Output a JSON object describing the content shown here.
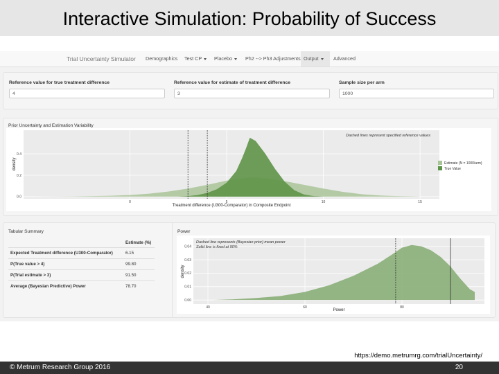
{
  "slide": {
    "title": "Interactive Simulation: Probability of Success",
    "url": "https://demo.metrumrg.com/trialUncertainty/",
    "footer_left": "© Metrum Research Group 2016",
    "page_number": "20"
  },
  "navbar": {
    "brand": "Trial Uncertainty Simulator",
    "items": [
      {
        "label": "Demographics",
        "dropdown": false,
        "active": false
      },
      {
        "label": "Test CP",
        "dropdown": true,
        "active": false
      },
      {
        "label": "Placebo",
        "dropdown": true,
        "active": false
      },
      {
        "label": "Ph2 --> Ph3 Adjustments",
        "dropdown": false,
        "active": false
      },
      {
        "label": "Output",
        "dropdown": true,
        "active": true
      },
      {
        "label": "Advanced",
        "dropdown": false,
        "active": false
      }
    ]
  },
  "inputs": {
    "true_diff": {
      "label": "Reference value for true treatment difference",
      "value": "4"
    },
    "est_diff": {
      "label": "Reference value for estimate of treatment difference",
      "value": "3"
    },
    "sample_size": {
      "label": "Sample size per arm",
      "value": "1000"
    }
  },
  "prior_panel": {
    "title": "Prior Uncertainty and Estimation Variability",
    "annotation": "Dashed lines represent specified reference values",
    "legend": [
      "Estimate (N = 1000/arm)",
      "True Value"
    ]
  },
  "summary": {
    "title": "Tabular Summary",
    "header": "Estimate (%)",
    "rows": [
      {
        "label": "Expected Treatment difference (U300-Comparator)",
        "value": "6.15"
      },
      {
        "label": "P(True value > 4)",
        "value": "99.80"
      },
      {
        "label": "P(Trial estimate > 3)",
        "value": "91.50"
      },
      {
        "label": "Average (Bayesian Predictive) Power",
        "value": "78.70"
      }
    ]
  },
  "power_panel": {
    "title": "Power",
    "annotation_1": "Dashed line represents (Bayesian prior) mean power",
    "annotation_2": "Solid line is fixed at 90%"
  },
  "colors": {
    "estimate_fill": "#a9c499",
    "true_fill": "#5e9447",
    "power_fill": "#8aae78",
    "plot_bg": "#ebebeb"
  },
  "chart_data": [
    {
      "type": "area",
      "xlabel": "Treatment difference (U300-Comparator) in Composite Endpoint",
      "ylabel": "density",
      "xlim": [
        -5.5,
        16
      ],
      "ylim": [
        -0.02,
        0.62
      ],
      "x_ticks": [
        0,
        5,
        10,
        15
      ],
      "y_ticks": [
        0.0,
        0.2,
        0.4
      ],
      "y_tick_labels": [
        "0.0",
        "0.2",
        "0.4"
      ],
      "reference_lines": [
        {
          "x": 3,
          "style": "dashed"
        },
        {
          "x": 4,
          "style": "dashed"
        }
      ],
      "legend_position": "right",
      "series": [
        {
          "name": "Estimate (N = 1000/arm)",
          "x": [
            -5,
            -3,
            -1,
            0,
            1,
            2,
            3,
            4,
            5,
            6,
            6.5,
            7,
            8,
            9,
            10,
            11,
            12,
            13,
            14,
            15
          ],
          "y": [
            0.0,
            0.002,
            0.008,
            0.015,
            0.028,
            0.048,
            0.075,
            0.11,
            0.15,
            0.175,
            0.178,
            0.17,
            0.145,
            0.11,
            0.075,
            0.045,
            0.022,
            0.01,
            0.004,
            0.001
          ]
        },
        {
          "name": "True Value",
          "x": [
            2.5,
            3,
            3.5,
            4,
            4.5,
            5,
            5.5,
            5.8,
            6,
            6.2,
            6.5,
            7,
            7.5,
            8,
            8.5,
            9,
            9.5,
            10
          ],
          "y": [
            0.0,
            0.005,
            0.015,
            0.035,
            0.07,
            0.13,
            0.24,
            0.36,
            0.45,
            0.55,
            0.52,
            0.4,
            0.26,
            0.14,
            0.06,
            0.02,
            0.005,
            0.0
          ]
        }
      ]
    },
    {
      "type": "area",
      "xlabel": "Power",
      "ylabel": "density",
      "xlim": [
        37,
        97
      ],
      "ylim": [
        -0.003,
        0.046
      ],
      "x_ticks": [
        40,
        60,
        80
      ],
      "y_ticks": [
        0.0,
        0.01,
        0.02,
        0.03,
        0.04
      ],
      "y_tick_labels": [
        "0.00",
        "0.01",
        "0.02",
        "0.03",
        "0.04"
      ],
      "reference_lines": [
        {
          "x": 78.7,
          "style": "dashed"
        },
        {
          "x": 90,
          "style": "solid"
        }
      ],
      "series": [
        {
          "name": "",
          "x": [
            41,
            45,
            50,
            55,
            60,
            65,
            70,
            75,
            78,
            80,
            82,
            84,
            86,
            88,
            90,
            92,
            94,
            95
          ],
          "y": [
            0.0,
            0.0005,
            0.0015,
            0.003,
            0.006,
            0.011,
            0.018,
            0.027,
            0.034,
            0.039,
            0.041,
            0.04,
            0.037,
            0.032,
            0.025,
            0.016,
            0.008,
            0.006
          ]
        }
      ]
    }
  ]
}
